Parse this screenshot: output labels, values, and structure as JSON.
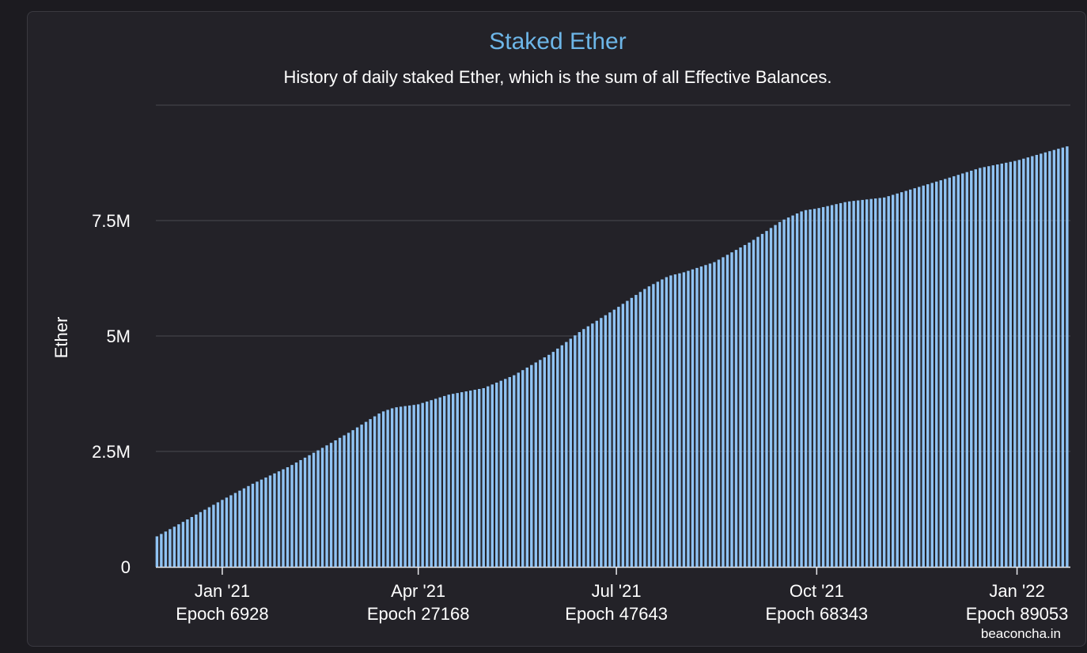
{
  "panel": {
    "credits": "beaconcha.in"
  },
  "chart_data": {
    "type": "bar",
    "title": "Staked Ether",
    "subtitle": "History of daily staked Ether, which is the sum of all Effective Balances.",
    "xlabel": "",
    "ylabel": "Ether",
    "ylim": [
      0,
      10000000
    ],
    "grid": true,
    "legend": "none",
    "bar_color": "#90c3f3",
    "title_color": "#6db6e8",
    "y_ticks": [
      {
        "value": 0,
        "label": "0"
      },
      {
        "value": 2500000,
        "label": "2.5M"
      },
      {
        "value": 5000000,
        "label": "5M"
      },
      {
        "value": 7500000,
        "label": "7.5M"
      }
    ],
    "x_ticks": [
      {
        "date": "2021-01-01",
        "label": "Jan '21",
        "epoch": "Epoch 6928"
      },
      {
        "date": "2021-04-01",
        "label": "Apr '21",
        "epoch": "Epoch 27168"
      },
      {
        "date": "2021-07-01",
        "label": "Jul '21",
        "epoch": "Epoch 47643"
      },
      {
        "date": "2021-10-01",
        "label": "Oct '21",
        "epoch": "Epoch 68343"
      },
      {
        "date": "2022-01-01",
        "label": "Jan '22",
        "epoch": "Epoch 89053"
      }
    ],
    "x_range": [
      "2020-12-02",
      "2022-01-25"
    ],
    "series": [
      {
        "values_every_2_days": [
          {
            "date": "2020-12-02",
            "value": 660000
          },
          {
            "date": "2020-12-15",
            "value": 1000000
          },
          {
            "date": "2021-01-01",
            "value": 1450000
          },
          {
            "date": "2021-01-15",
            "value": 1800000
          },
          {
            "date": "2021-02-01",
            "value": 2180000
          },
          {
            "date": "2021-02-15",
            "value": 2550000
          },
          {
            "date": "2021-03-01",
            "value": 2930000
          },
          {
            "date": "2021-03-15",
            "value": 3350000
          },
          {
            "date": "2021-03-21",
            "value": 3450000
          },
          {
            "date": "2021-04-01",
            "value": 3520000
          },
          {
            "date": "2021-04-15",
            "value": 3730000
          },
          {
            "date": "2021-05-01",
            "value": 3870000
          },
          {
            "date": "2021-05-15",
            "value": 4150000
          },
          {
            "date": "2021-06-01",
            "value": 4620000
          },
          {
            "date": "2021-06-15",
            "value": 5120000
          },
          {
            "date": "2021-07-01",
            "value": 5600000
          },
          {
            "date": "2021-07-15",
            "value": 6050000
          },
          {
            "date": "2021-07-25",
            "value": 6300000
          },
          {
            "date": "2021-08-01",
            "value": 6380000
          },
          {
            "date": "2021-08-15",
            "value": 6600000
          },
          {
            "date": "2021-09-01",
            "value": 7050000
          },
          {
            "date": "2021-09-15",
            "value": 7500000
          },
          {
            "date": "2021-09-25",
            "value": 7720000
          },
          {
            "date": "2021-10-01",
            "value": 7760000
          },
          {
            "date": "2021-10-15",
            "value": 7910000
          },
          {
            "date": "2021-11-01",
            "value": 8000000
          },
          {
            "date": "2021-11-15",
            "value": 8200000
          },
          {
            "date": "2021-12-01",
            "value": 8430000
          },
          {
            "date": "2021-12-15",
            "value": 8640000
          },
          {
            "date": "2022-01-01",
            "value": 8800000
          },
          {
            "date": "2022-01-15",
            "value": 8990000
          },
          {
            "date": "2022-01-25",
            "value": 9120000
          }
        ]
      }
    ]
  }
}
